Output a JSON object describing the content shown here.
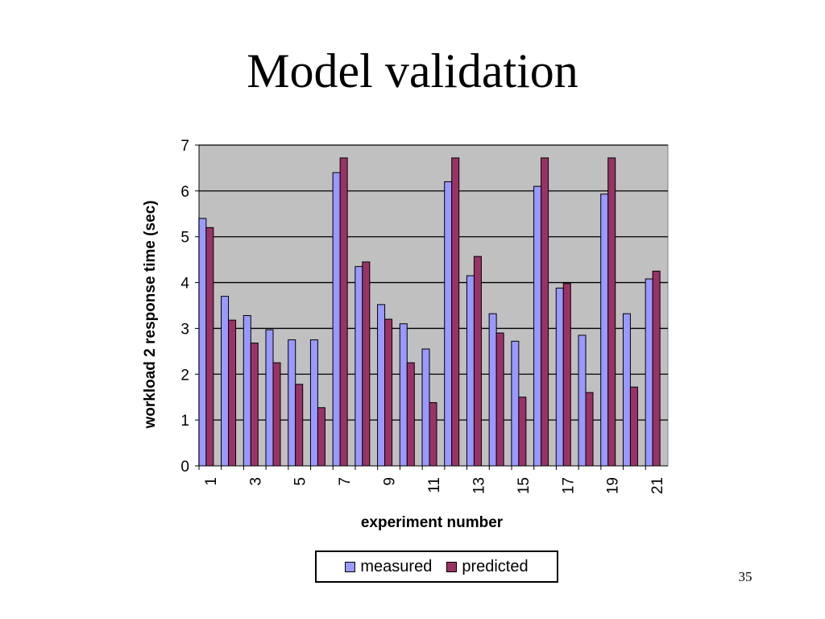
{
  "slide": {
    "title": "Model validation",
    "number": "35"
  },
  "colors": {
    "measured": "#9999ff",
    "predicted": "#993366",
    "plot_background": "#c0c0c0",
    "gridline": "#000000"
  },
  "chart_data": {
    "type": "bar",
    "title": "",
    "xlabel": "experiment number",
    "ylabel": "workload 2 response time (sec)",
    "ylim": [
      0,
      7
    ],
    "yticks": [
      0,
      1,
      2,
      3,
      4,
      5,
      6,
      7
    ],
    "grid": true,
    "legend_position": "bottom",
    "categories": [
      "1",
      "2",
      "3",
      "4",
      "5",
      "6",
      "7",
      "8",
      "9",
      "10",
      "11",
      "12",
      "13",
      "14",
      "15",
      "16",
      "17",
      "18",
      "19",
      "20",
      "21"
    ],
    "category_tick_labels": [
      "1",
      "",
      "3",
      "",
      "5",
      "",
      "7",
      "",
      "9",
      "",
      "11",
      "",
      "13",
      "",
      "15",
      "",
      "17",
      "",
      "19",
      "",
      "21"
    ],
    "series": [
      {
        "name": "measured",
        "values": [
          5.4,
          3.7,
          3.28,
          2.97,
          2.75,
          2.75,
          6.4,
          4.35,
          3.52,
          3.1,
          2.55,
          6.2,
          4.15,
          3.32,
          2.72,
          6.1,
          3.88,
          2.85,
          5.93,
          3.32,
          4.08
        ]
      },
      {
        "name": "predicted",
        "values": [
          5.2,
          3.18,
          2.68,
          2.25,
          1.78,
          1.27,
          6.72,
          4.45,
          3.2,
          2.25,
          1.38,
          6.72,
          4.57,
          2.9,
          1.5,
          6.72,
          3.98,
          1.6,
          6.72,
          1.72,
          4.25
        ]
      }
    ]
  }
}
